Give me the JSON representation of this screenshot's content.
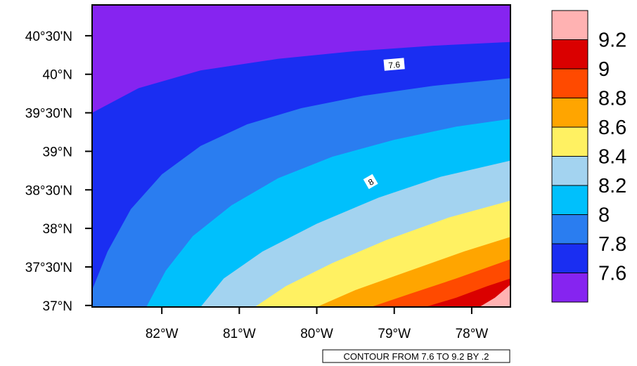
{
  "chart_data": {
    "type": "filled-contour",
    "title": "",
    "x_axis": {
      "range": [
        -82.9,
        -77.5
      ],
      "ticks": [
        {
          "value": -82,
          "label": "82°W"
        },
        {
          "value": -81,
          "label": "81°W"
        },
        {
          "value": -80,
          "label": "80°W"
        },
        {
          "value": -79,
          "label": "79°W"
        },
        {
          "value": -78,
          "label": "78°W"
        }
      ]
    },
    "y_axis": {
      "range": [
        36.98,
        40.9
      ],
      "ticks": [
        {
          "value": 37.0,
          "label": "37°N"
        },
        {
          "value": 37.5,
          "label": "37°30'N"
        },
        {
          "value": 38.0,
          "label": "38°N"
        },
        {
          "value": 38.5,
          "label": "38°30'N"
        },
        {
          "value": 39.0,
          "label": "39°N"
        },
        {
          "value": 39.5,
          "label": "39°30'N"
        },
        {
          "value": 40.0,
          "label": "40°N"
        },
        {
          "value": 40.5,
          "label": "40°30'N"
        }
      ]
    },
    "contour_levels": [
      7.6,
      7.8,
      8.0,
      8.2,
      8.4,
      8.6,
      8.8,
      9.0,
      9.2
    ],
    "fill_colors": [
      "#8624f0",
      "#1a2ef2",
      "#2a7df0",
      "#00c0fc",
      "#a3d3f0",
      "#fff162",
      "#ffa500",
      "#ff4a00",
      "#da0000",
      "#ffb2b2"
    ],
    "contour_lines": [
      {
        "level": 7.6,
        "points": [
          [
            -82.9,
            39.5
          ],
          [
            -82.3,
            39.82
          ],
          [
            -81.5,
            40.05
          ],
          [
            -80.5,
            40.2
          ],
          [
            -79.5,
            40.3
          ],
          [
            -78.5,
            40.37
          ],
          [
            -77.5,
            40.42
          ]
        ]
      },
      {
        "level": 7.8,
        "points": [
          [
            -82.9,
            37.2
          ],
          [
            -82.7,
            37.7
          ],
          [
            -82.4,
            38.25
          ],
          [
            -82.0,
            38.7
          ],
          [
            -81.5,
            39.07
          ],
          [
            -80.9,
            39.35
          ],
          [
            -80.2,
            39.56
          ],
          [
            -79.4,
            39.72
          ],
          [
            -78.5,
            39.85
          ],
          [
            -77.5,
            39.95
          ]
        ]
      },
      {
        "level": 8.0,
        "points": [
          [
            -82.2,
            36.98
          ],
          [
            -81.95,
            37.45
          ],
          [
            -81.6,
            37.9
          ],
          [
            -81.1,
            38.3
          ],
          [
            -80.5,
            38.65
          ],
          [
            -79.8,
            38.93
          ],
          [
            -79.0,
            39.15
          ],
          [
            -78.2,
            39.32
          ],
          [
            -77.5,
            39.42
          ]
        ]
      },
      {
        "level": 8.2,
        "points": [
          [
            -81.5,
            36.98
          ],
          [
            -81.2,
            37.35
          ],
          [
            -80.7,
            37.7
          ],
          [
            -80.0,
            38.06
          ],
          [
            -79.2,
            38.4
          ],
          [
            -78.4,
            38.67
          ],
          [
            -77.5,
            38.88
          ]
        ]
      },
      {
        "level": 8.4,
        "points": [
          [
            -80.8,
            36.98
          ],
          [
            -80.4,
            37.25
          ],
          [
            -79.8,
            37.55
          ],
          [
            -79.1,
            37.85
          ],
          [
            -78.3,
            38.14
          ],
          [
            -77.5,
            38.36
          ]
        ]
      },
      {
        "level": 8.6,
        "points": [
          [
            -80.0,
            36.98
          ],
          [
            -79.5,
            37.2
          ],
          [
            -78.8,
            37.45
          ],
          [
            -78.1,
            37.7
          ],
          [
            -77.5,
            37.89
          ]
        ]
      },
      {
        "level": 8.8,
        "points": [
          [
            -79.3,
            36.98
          ],
          [
            -78.8,
            37.15
          ],
          [
            -78.2,
            37.35
          ],
          [
            -77.5,
            37.6
          ]
        ]
      },
      {
        "level": 9.0,
        "points": [
          [
            -78.6,
            36.98
          ],
          [
            -78.2,
            37.1
          ],
          [
            -77.8,
            37.25
          ],
          [
            -77.5,
            37.35
          ]
        ]
      },
      {
        "level": 9.2,
        "points": [
          [
            -77.9,
            36.98
          ],
          [
            -77.7,
            37.1
          ],
          [
            -77.5,
            37.27
          ]
        ]
      }
    ],
    "line_labels": [
      {
        "text": "7.6",
        "lon": -79.0,
        "lat": 40.12,
        "angle": -5
      },
      {
        "text": "8",
        "lon": -79.3,
        "lat": 38.6,
        "angle": -30
      }
    ],
    "legend": {
      "placement": "right",
      "labels": [
        "9.2",
        "9",
        "8.8",
        "8.6",
        "8.4",
        "8.2",
        "8",
        "7.8",
        "7.6"
      ]
    },
    "info_label": "CONTOUR FROM 7.6 TO 9.2 BY .2"
  }
}
